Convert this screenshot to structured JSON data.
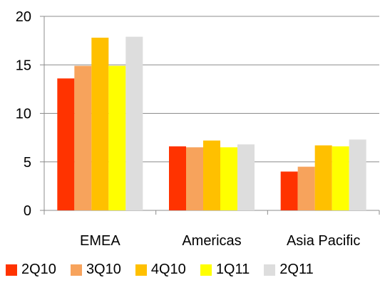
{
  "chart_data": {
    "type": "bar",
    "categories": [
      "EMEA",
      "Americas",
      "Asia Pacific"
    ],
    "series": [
      {
        "name": "2Q10",
        "color": "#FF3300",
        "values": [
          13.6,
          6.6,
          4.0
        ]
      },
      {
        "name": "3Q10",
        "color": "#F7A35C",
        "values": [
          14.9,
          6.5,
          4.5
        ]
      },
      {
        "name": "4Q10",
        "color": "#FFC000",
        "values": [
          17.8,
          7.2,
          6.7
        ]
      },
      {
        "name": "1Q11",
        "color": "#FFFF00",
        "values": [
          14.9,
          6.5,
          6.6
        ]
      },
      {
        "name": "2Q11",
        "color": "#DDDDDD",
        "values": [
          17.9,
          6.8,
          7.3
        ]
      }
    ],
    "yticks": [
      "0",
      "5",
      "10",
      "15",
      "20"
    ],
    "ylim": [
      0,
      20
    ],
    "grid": true,
    "legend": "bottom",
    "title": "",
    "xlabel": "",
    "ylabel": ""
  }
}
